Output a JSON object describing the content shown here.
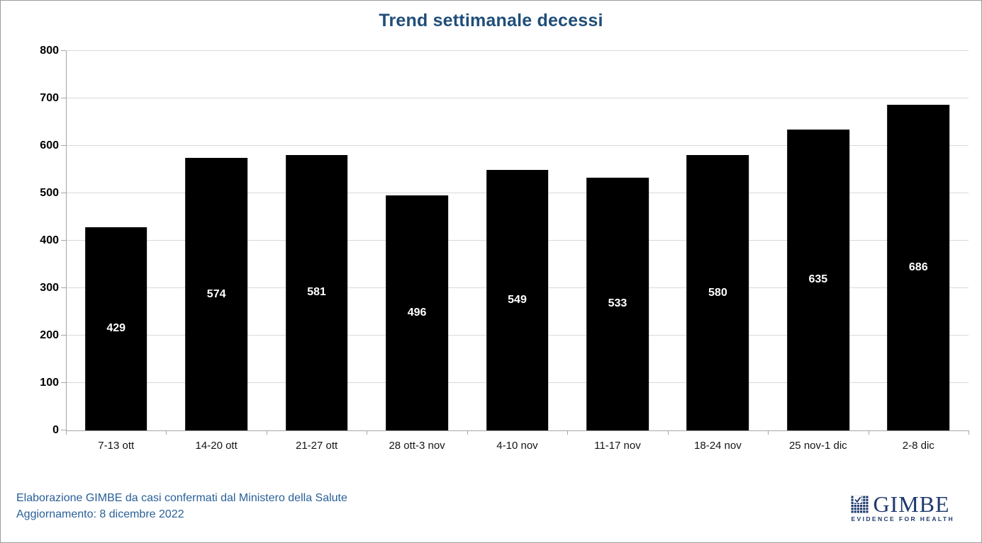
{
  "window": {
    "background": "#FFFFFF",
    "border_color": "#9D9D9D"
  },
  "chart_data": {
    "type": "bar",
    "title": "Trend settimanale decessi",
    "categories": [
      "7-13 ott",
      "14-20 ott",
      "21-27 ott",
      "28 ott-3 nov",
      "4-10 nov",
      "11-17 nov",
      "18-24 nov",
      "25 nov-1 dic",
      "2-8 dic"
    ],
    "values": [
      429,
      574,
      581,
      496,
      549,
      533,
      580,
      635,
      686
    ],
    "xlabel": "",
    "ylabel": "",
    "ylim": [
      0,
      800
    ],
    "ytick_step": 100,
    "grid": true,
    "legend_position": "none",
    "data_labels": "inside-center",
    "colors": {
      "bar": "#000000",
      "bar_label": "#FFFFFF",
      "gridline": "#D9D9D9",
      "axis": "#A6A6A6",
      "tick_label": "#000000",
      "title": "#1F4E79"
    }
  },
  "footer": {
    "line1": "Elaborazione GIMBE da casi confermati dal Ministero della Salute",
    "line2": "Aggiornamento: 8 dicembre 2022",
    "text_color": "#2A6099"
  },
  "logo": {
    "name": "GIMBE",
    "tagline": "EVIDENCE FOR HEALTH",
    "color": "#1E3A6E",
    "icon": "gimbe-grid-check-icon"
  }
}
